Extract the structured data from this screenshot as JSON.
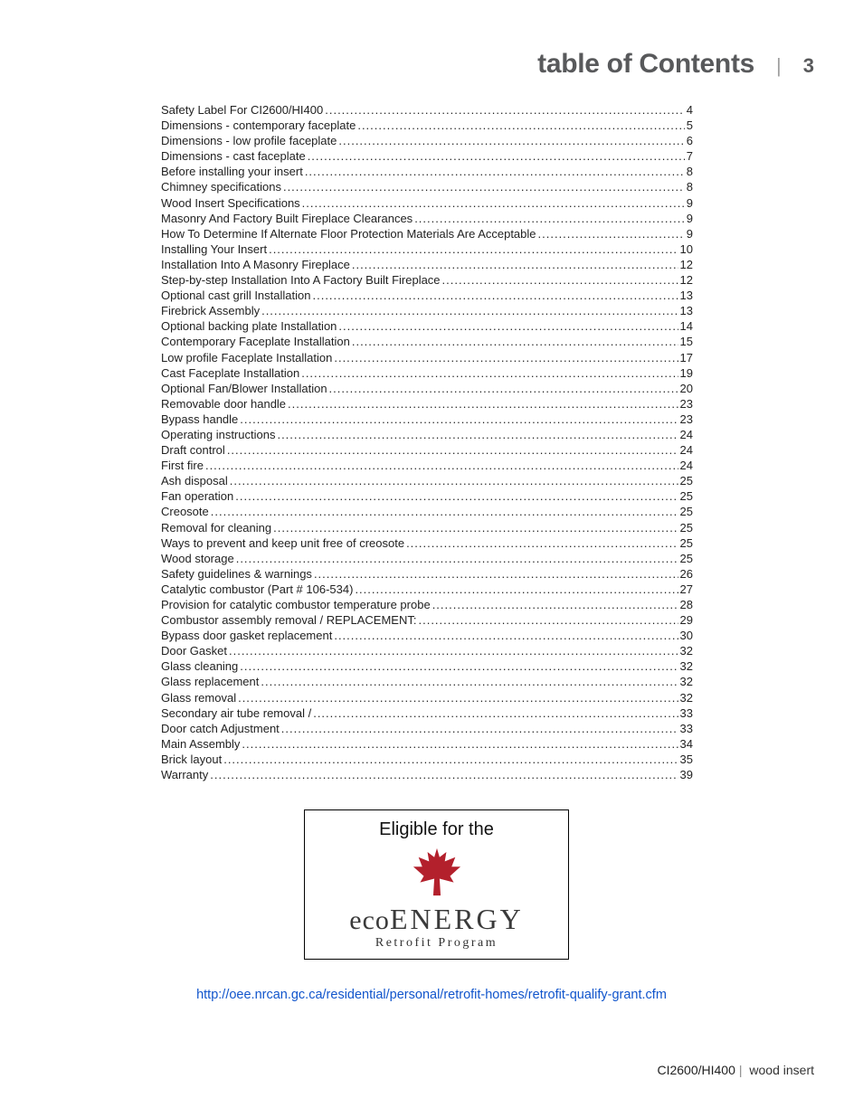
{
  "header": {
    "title": "table of Contents",
    "page_number": "3"
  },
  "toc": [
    {
      "label": "Safety Label For CI2600/HI400 ",
      "page": "4"
    },
    {
      "label": "Dimensions - contemporary faceplate",
      "page": "5"
    },
    {
      "label": "Dimensions - low profile faceplate",
      "page": "6"
    },
    {
      "label": "Dimensions - cast faceplate ",
      "page": "7"
    },
    {
      "label": "Before installing your insert",
      "page": "8"
    },
    {
      "label": "Chimney specifications",
      "page": "8"
    },
    {
      "label": "Wood Insert Specifications",
      "page": "9"
    },
    {
      "label": "Masonry And Factory Built Fireplace Clearances ",
      "page": "9"
    },
    {
      "label": "How To Determine If Alternate Floor Protection Materials Are Acceptable ",
      "page": "9"
    },
    {
      "label": "Installing Your Insert",
      "page": "10"
    },
    {
      "label": "Installation Into A Masonry Fireplace",
      "page": "12"
    },
    {
      "label": "Step-by-step Installation Into A Factory Built Fireplace",
      "page": "12"
    },
    {
      "label": "Optional cast grill Installation",
      "page": "13"
    },
    {
      "label": "Firebrick Assembly ",
      "page": "13"
    },
    {
      "label": "Optional backing plate Installation",
      "page": "14"
    },
    {
      "label": "Contemporary Faceplate Installation",
      "page": "15"
    },
    {
      "label": "Low profile Faceplate Installation ",
      "page": "17"
    },
    {
      "label": "Cast Faceplate Installation ",
      "page": "19"
    },
    {
      "label": "Optional Fan/Blower Installation",
      "page": "20"
    },
    {
      "label": "Removable door handle",
      "page": "23"
    },
    {
      "label": "Bypass handle",
      "page": "23"
    },
    {
      "label": "Operating instructions",
      "page": "24"
    },
    {
      "label": "Draft control",
      "page": "24"
    },
    {
      "label": "First fire",
      "page": "24"
    },
    {
      "label": "Ash disposal",
      "page": "25"
    },
    {
      "label": "Fan operation",
      "page": "25"
    },
    {
      "label": "Creosote",
      "page": "25"
    },
    {
      "label": "Removal for cleaning",
      "page": "25"
    },
    {
      "label": "Ways to prevent and keep unit free of creosote ",
      "page": "25"
    },
    {
      "label": "Wood storage ",
      "page": "25"
    },
    {
      "label": "Safety guidelines & warnings ",
      "page": "26"
    },
    {
      "label": "Catalytic combustor (Part # 106-534)",
      "page": "27"
    },
    {
      "label": "Provision for catalytic combustor temperature probe ",
      "page": "28"
    },
    {
      "label": "Combustor assembly removal / REPLACEMENT: ",
      "page": "29"
    },
    {
      "label": "Bypass door gasket replacement ",
      "page": "30"
    },
    {
      "label": "Door Gasket ",
      "page": "32"
    },
    {
      "label": "Glass cleaning",
      "page": "32"
    },
    {
      "label": "Glass replacement",
      "page": "32"
    },
    {
      "label": "Glass removal",
      "page": "32"
    },
    {
      "label": "Secondary air tube removal / ",
      "page": "33"
    },
    {
      "label": "Door catch Adjustment ",
      "page": "33"
    },
    {
      "label": "Main Assembly ",
      "page": "34"
    },
    {
      "label": "Brick layout ",
      "page": "35"
    },
    {
      "label": "Warranty ",
      "page": "39"
    }
  ],
  "eco": {
    "top_text": "Eligible for the",
    "brand_lower": "eco",
    "brand_upper": "ENERGY",
    "subtitle": "Retrofit Program",
    "leaf_color": "#b3202c"
  },
  "link_text": "http://oee.nrcan.gc.ca/residential/personal/retrofit-homes/retrofit-qualify-grant.cfm",
  "footer": {
    "model": "CI2600/HI400",
    "product": "wood insert"
  },
  "colors": {
    "heading": "#58595b",
    "link": "#1155cc",
    "text": "#222222"
  }
}
